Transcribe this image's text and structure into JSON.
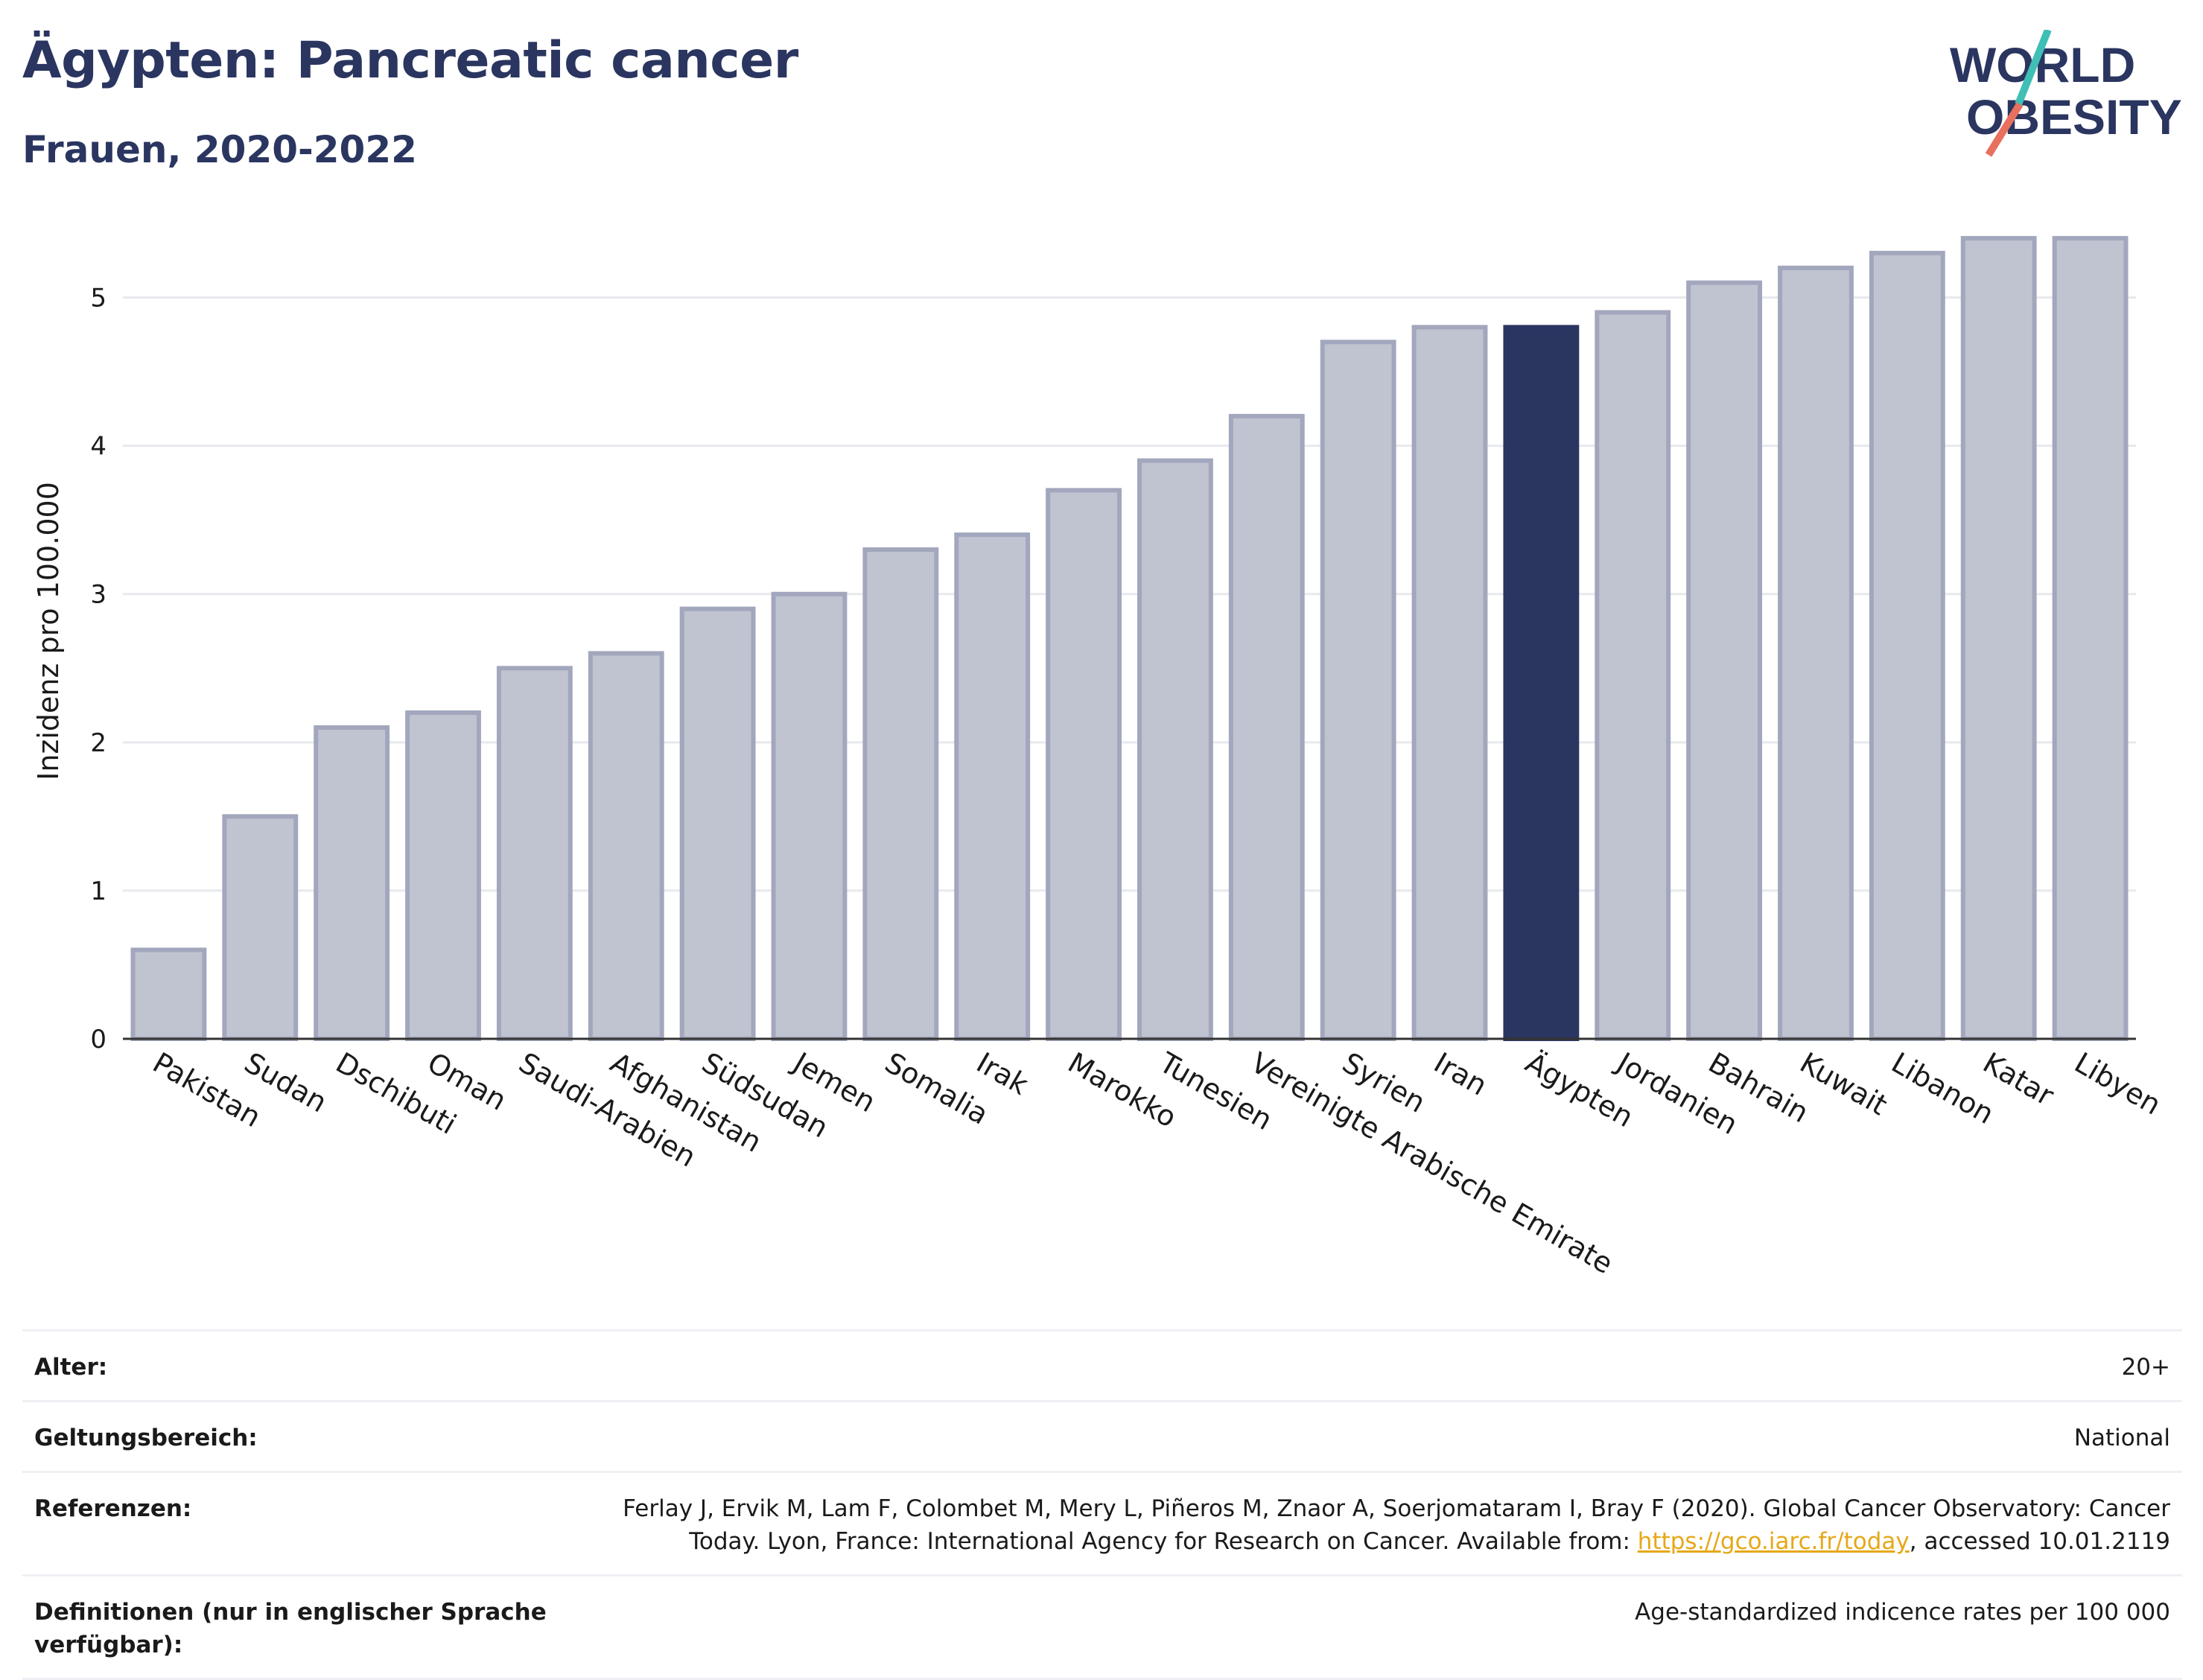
{
  "header": {
    "title": "Ägypten: Pancreatic cancer",
    "subtitle": "Frauen, 2020-2022"
  },
  "logo": {
    "line1": "WORLD",
    "line2": "OBESITY",
    "accent_teal": "#3fbfb6",
    "accent_red": "#e8705e"
  },
  "colors": {
    "bar": "#c0c3d0",
    "bar_border": "#a2a7bd",
    "highlight": "#2a3560",
    "grid": "#e8e9ee",
    "axis": "#333333"
  },
  "chart_data": {
    "type": "bar",
    "ylabel": "Inzidenz pro 100.000",
    "ylim": [
      0,
      5.5
    ],
    "yticks": [
      0,
      1,
      2,
      3,
      4,
      5
    ],
    "grid": true,
    "highlight": "Ägypten",
    "categories": [
      "Pakistan",
      "Sudan",
      "Dschibuti",
      "Oman",
      "Saudi-Arabien",
      "Afghanistan",
      "Südsudan",
      "Jemen",
      "Somalia",
      "Irak",
      "Marokko",
      "Tunesien",
      "Vereinigte Arabische Emirate",
      "Syrien",
      "Iran",
      "Ägypten",
      "Jordanien",
      "Bahrain",
      "Kuwait",
      "Libanon",
      "Katar",
      "Libyen"
    ],
    "values": [
      0.6,
      1.5,
      2.1,
      2.2,
      2.5,
      2.6,
      2.9,
      3.0,
      3.3,
      3.4,
      3.7,
      3.9,
      4.2,
      4.7,
      4.8,
      4.8,
      4.9,
      5.1,
      5.2,
      5.3,
      5.4,
      5.4
    ]
  },
  "info": {
    "age_label": "Alter:",
    "age_value": "20+",
    "scope_label": "Geltungsbereich:",
    "scope_value": "National",
    "refs_label": "Referenzen:",
    "refs_text_before": "Ferlay J, Ervik M, Lam F, Colombet M, Mery L, Piñeros M, Znaor A, Soerjomataram I, Bray F (2020). Global Cancer Observatory: Cancer Today. Lyon, France: International Agency for Research on Cancer. Available from: ",
    "refs_link": "https://gco.iarc.fr/today",
    "refs_text_after": ", accessed 10.01.2119",
    "defs_label": "Definitionen (nur in englischer Sprache verfügbar):",
    "defs_value": "Age-standardized indicence rates per 100 000"
  }
}
